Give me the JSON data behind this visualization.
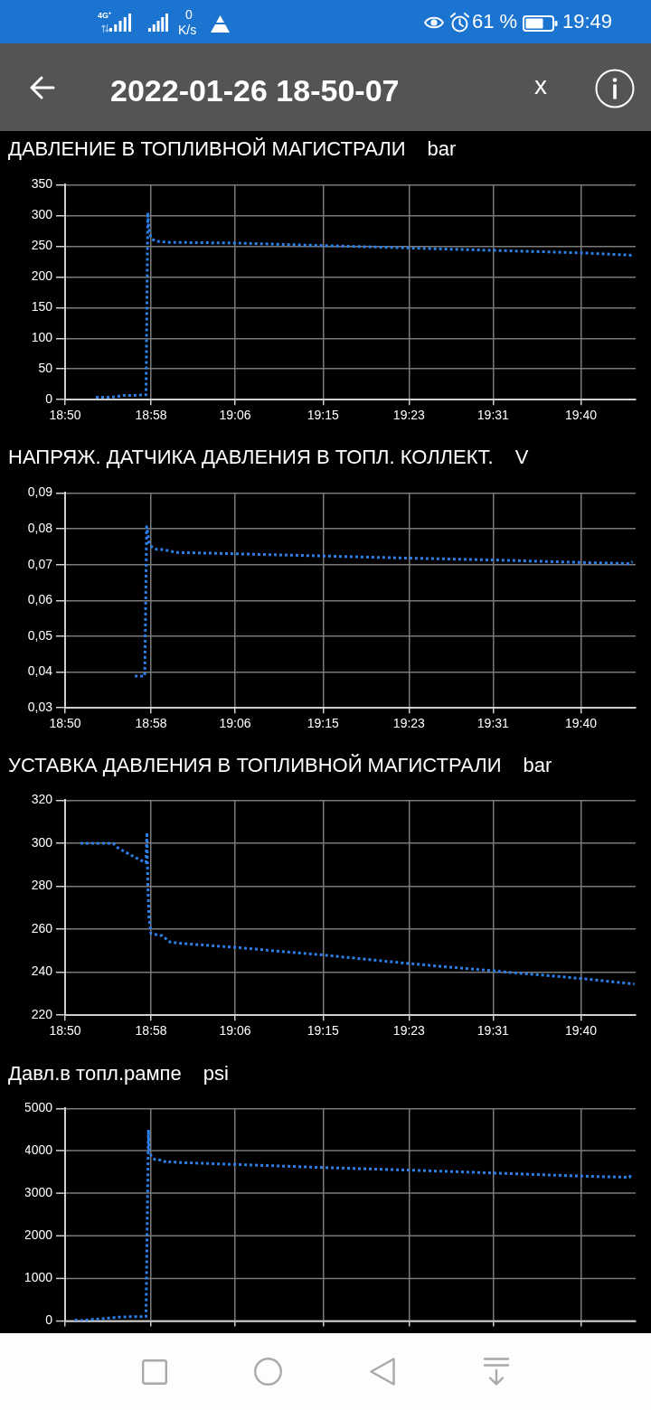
{
  "chart_data": [
    {
      "type": "other",
      "title": "2022-01-26 18-50-07",
      "annotations": [
        "4G⁺",
        "0",
        "K/s",
        "61 %",
        "19:49",
        "x"
      ]
    },
    {
      "type": "line",
      "title": "ДАВЛЕНИЕ В ТОПЛИВНОЙ МАГИСТРАЛИ",
      "ylabel": "bar",
      "x": [
        18.883,
        18.903,
        18.917,
        18.927,
        18.943,
        18.964,
        18.967,
        18.968,
        18.97,
        18.973,
        18.98,
        18.99,
        19.003,
        19.017,
        19.11,
        19.25,
        19.39,
        19.53,
        19.67,
        19.753
      ],
      "values": [
        4,
        4,
        5,
        7,
        7,
        8,
        305,
        285,
        270,
        262,
        258,
        257,
        256,
        256,
        255,
        251,
        247,
        243,
        239,
        235
      ],
      "color": "#2c7fe8",
      "xlim": [
        18.8333,
        19.755
      ],
      "xticks": [
        {
          "value": 18.8333,
          "label": "18:50"
        },
        {
          "value": 18.9722,
          "label": "18:58"
        },
        {
          "value": 19.108,
          "label": "19:06"
        },
        {
          "value": 19.25,
          "label": "19:15"
        },
        {
          "value": 19.3889,
          "label": "19:23"
        },
        {
          "value": 19.5247,
          "label": "19:31"
        },
        {
          "value": 19.6667,
          "label": "19:40"
        }
      ],
      "ylim": [
        0,
        350
      ],
      "yticks": [
        0,
        50,
        100,
        150,
        200,
        250,
        300,
        350
      ],
      "grid": true,
      "line_style": "dotted"
    },
    {
      "type": "line",
      "title": "НАПРЯЖ. ДАТЧИКА ДАВЛЕНИЯ В ТОПЛ. КОЛЛЕКТ.",
      "ylabel": "V",
      "x": [
        18.946,
        18.962,
        18.965,
        18.966,
        18.969,
        18.973,
        18.982,
        18.992,
        19.005,
        19.012,
        19.112,
        19.252,
        19.389,
        19.525,
        19.667,
        19.746,
        19.75
      ],
      "values": [
        0.0389,
        0.0389,
        0.0806,
        0.08,
        0.076,
        0.075,
        0.0742,
        0.0742,
        0.0737,
        0.0734,
        0.073,
        0.0724,
        0.0718,
        0.0713,
        0.0706,
        0.0703,
        0.0708
      ],
      "color": "#2c7fe8",
      "xlim": [
        18.8333,
        19.755
      ],
      "xticks": [
        {
          "value": 18.8333,
          "label": "18:50"
        },
        {
          "value": 18.9722,
          "label": "18:58"
        },
        {
          "value": 19.108,
          "label": "19:06"
        },
        {
          "value": 19.25,
          "label": "19:15"
        },
        {
          "value": 19.3889,
          "label": "19:23"
        },
        {
          "value": 19.5247,
          "label": "19:31"
        },
        {
          "value": 19.6667,
          "label": "19:40"
        }
      ],
      "ylim": [
        0.03,
        0.09
      ],
      "yticks": [
        {
          "value": 0.03,
          "label": "0,03"
        },
        {
          "value": 0.04,
          "label": "0,04"
        },
        {
          "value": 0.05,
          "label": "0,05"
        },
        {
          "value": 0.06,
          "label": "0,06"
        },
        {
          "value": 0.07,
          "label": "0,07"
        },
        {
          "value": 0.08,
          "label": "0,08"
        },
        {
          "value": 0.09,
          "label": "0,09"
        }
      ],
      "grid": true,
      "line_style": "dotted"
    },
    {
      "type": "line",
      "title": "УСТАВКА ДАВЛЕНИЯ В ТОПЛИВНОЙ МАГИСТРАЛИ",
      "ylabel": "bar",
      "x": [
        18.858,
        18.911,
        18.918,
        18.93,
        18.943,
        18.956,
        18.964,
        18.9655,
        18.967,
        18.969,
        18.972,
        18.99,
        19.003,
        19.017,
        19.11,
        19.25,
        19.39,
        19.53,
        19.67,
        19.753
      ],
      "values": [
        300,
        300,
        298,
        296,
        294,
        292,
        291,
        305,
        280,
        265,
        258,
        257,
        254,
        253.5,
        251.5,
        248,
        244,
        240.5,
        237,
        234.5
      ],
      "color": "#2c7fe8",
      "xlim": [
        18.8333,
        19.755
      ],
      "xticks": [
        {
          "value": 18.8333,
          "label": "18:50"
        },
        {
          "value": 18.9722,
          "label": "18:58"
        },
        {
          "value": 19.108,
          "label": "19:06"
        },
        {
          "value": 19.25,
          "label": "19:15"
        },
        {
          "value": 19.3889,
          "label": "19:23"
        },
        {
          "value": 19.5247,
          "label": "19:31"
        },
        {
          "value": 19.6667,
          "label": "19:40"
        }
      ],
      "ylim": [
        220,
        320
      ],
      "yticks": [
        220,
        240,
        260,
        280,
        300,
        320
      ],
      "grid": true,
      "line_style": "dotted"
    },
    {
      "type": "line",
      "title": "Давл.в топл.рампе",
      "ylabel": "psi",
      "x": [
        18.849,
        18.86,
        18.88,
        18.9,
        18.92,
        18.94,
        18.964,
        18.968,
        18.969,
        18.972,
        18.978,
        18.991,
        18.998,
        19.004,
        19.015,
        19.115,
        19.252,
        19.39,
        19.528,
        19.665,
        19.745,
        19.748
      ],
      "values": [
        20,
        10,
        40,
        60,
        90,
        100,
        100,
        4500,
        4000,
        3900,
        3800,
        3780,
        3720,
        3750,
        3730,
        3680,
        3610,
        3550,
        3480,
        3410,
        3380,
        3450
      ],
      "color": "#2c7fe8",
      "xlim": [
        18.8333,
        19.755
      ],
      "xticks": [
        {
          "value": 18.8333,
          "label": null
        },
        {
          "value": 18.9722,
          "label": null
        },
        {
          "value": 19.108,
          "label": null
        },
        {
          "value": 19.25,
          "label": null
        },
        {
          "value": 19.3889,
          "label": null
        },
        {
          "value": 19.5247,
          "label": null
        },
        {
          "value": 19.6667,
          "label": null
        }
      ],
      "ylim": [
        0,
        5000
      ],
      "yticks": [
        0,
        1000,
        2000,
        3000,
        4000,
        5000
      ],
      "grid": true,
      "line_style": "dotted",
      "tick_labels": "y"
    }
  ]
}
